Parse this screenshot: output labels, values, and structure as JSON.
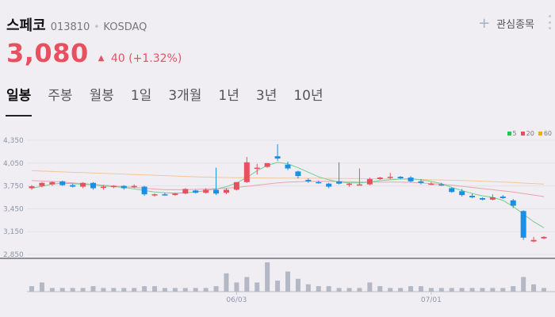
{
  "stock": {
    "name": "스페코",
    "code": "013810",
    "separator": "•",
    "market": "KOSDAQ",
    "price": "3,080",
    "change_arrow": "▲",
    "change_amount": "40",
    "change_percent": "(+1.32%)"
  },
  "watchlist": {
    "icon": "plus-icon",
    "label": "관심종목"
  },
  "tabs": [
    {
      "label": "일봉",
      "active": true
    },
    {
      "label": "주봉",
      "active": false
    },
    {
      "label": "월봉",
      "active": false
    },
    {
      "label": "1일",
      "active": false
    },
    {
      "label": "3개월",
      "active": false
    },
    {
      "label": "1년",
      "active": false
    },
    {
      "label": "3년",
      "active": false
    },
    {
      "label": "10년",
      "active": false
    }
  ],
  "legend": [
    {
      "label": "5",
      "color": "#2fbf4f"
    },
    {
      "label": "20",
      "color": "#e9505f"
    },
    {
      "label": "60",
      "color": "#f5a623"
    }
  ],
  "colors": {
    "up": "#e9505f",
    "down": "#1a8fe3",
    "volume": "#b3b8c4",
    "ma20": "#e9a2ad",
    "ma60": "#f0c79a",
    "ma5": "#6fcf8f"
  },
  "chart_data": {
    "type": "candlestick",
    "y_ticks": [
      "4,350",
      "4,050",
      "3,750",
      "3,450",
      "3,150",
      "2,850"
    ],
    "ylim": [
      2850,
      4350
    ],
    "x_ticks": [
      {
        "label": "06/03",
        "index": 20
      },
      {
        "label": "07/01",
        "index": 39
      }
    ],
    "candles": [
      {
        "o": 3720,
        "h": 3760,
        "l": 3700,
        "c": 3745
      },
      {
        "o": 3750,
        "h": 3800,
        "l": 3730,
        "c": 3790
      },
      {
        "o": 3770,
        "h": 3810,
        "l": 3750,
        "c": 3800
      },
      {
        "o": 3810,
        "h": 3820,
        "l": 3750,
        "c": 3760
      },
      {
        "o": 3760,
        "h": 3780,
        "l": 3730,
        "c": 3740
      },
      {
        "o": 3740,
        "h": 3800,
        "l": 3720,
        "c": 3790
      },
      {
        "o": 3790,
        "h": 3800,
        "l": 3700,
        "c": 3720
      },
      {
        "o": 3730,
        "h": 3760,
        "l": 3700,
        "c": 3740
      },
      {
        "o": 3740,
        "h": 3760,
        "l": 3720,
        "c": 3750
      },
      {
        "o": 3750,
        "h": 3760,
        "l": 3700,
        "c": 3720
      },
      {
        "o": 3740,
        "h": 3770,
        "l": 3720,
        "c": 3750
      },
      {
        "o": 3740,
        "h": 3750,
        "l": 3620,
        "c": 3640
      },
      {
        "o": 3630,
        "h": 3650,
        "l": 3610,
        "c": 3640
      },
      {
        "o": 3640,
        "h": 3660,
        "l": 3620,
        "c": 3630
      },
      {
        "o": 3630,
        "h": 3660,
        "l": 3620,
        "c": 3650
      },
      {
        "o": 3650,
        "h": 3720,
        "l": 3640,
        "c": 3710
      },
      {
        "o": 3690,
        "h": 3700,
        "l": 3650,
        "c": 3660
      },
      {
        "o": 3660,
        "h": 3720,
        "l": 3650,
        "c": 3700
      },
      {
        "o": 3700,
        "h": 3990,
        "l": 3630,
        "c": 3650
      },
      {
        "o": 3660,
        "h": 3720,
        "l": 3640,
        "c": 3700
      },
      {
        "o": 3700,
        "h": 3800,
        "l": 3690,
        "c": 3800
      },
      {
        "o": 3800,
        "h": 4130,
        "l": 3790,
        "c": 4060
      },
      {
        "o": 3990,
        "h": 4040,
        "l": 3900,
        "c": 3990
      },
      {
        "o": 4000,
        "h": 4050,
        "l": 3990,
        "c": 4050
      },
      {
        "o": 4140,
        "h": 4300,
        "l": 4080,
        "c": 4110
      },
      {
        "o": 4030,
        "h": 4070,
        "l": 3960,
        "c": 3980
      },
      {
        "o": 3940,
        "h": 3950,
        "l": 3850,
        "c": 3880
      },
      {
        "o": 3830,
        "h": 3850,
        "l": 3790,
        "c": 3810
      },
      {
        "o": 3800,
        "h": 3820,
        "l": 3780,
        "c": 3790
      },
      {
        "o": 3780,
        "h": 3790,
        "l": 3720,
        "c": 3740
      },
      {
        "o": 3810,
        "h": 4060,
        "l": 3770,
        "c": 3780
      },
      {
        "o": 3770,
        "h": 3790,
        "l": 3740,
        "c": 3780
      },
      {
        "o": 3770,
        "h": 3980,
        "l": 3760,
        "c": 3770
      },
      {
        "o": 3770,
        "h": 3860,
        "l": 3760,
        "c": 3840
      },
      {
        "o": 3840,
        "h": 3870,
        "l": 3830,
        "c": 3860
      },
      {
        "o": 3860,
        "h": 3920,
        "l": 3840,
        "c": 3870
      },
      {
        "o": 3870,
        "h": 3880,
        "l": 3840,
        "c": 3850
      },
      {
        "o": 3860,
        "h": 3880,
        "l": 3800,
        "c": 3810
      },
      {
        "o": 3810,
        "h": 3840,
        "l": 3770,
        "c": 3790
      },
      {
        "o": 3780,
        "h": 3800,
        "l": 3760,
        "c": 3780
      },
      {
        "o": 3770,
        "h": 3790,
        "l": 3750,
        "c": 3760
      },
      {
        "o": 3720,
        "h": 3730,
        "l": 3660,
        "c": 3670
      },
      {
        "o": 3680,
        "h": 3710,
        "l": 3610,
        "c": 3630
      },
      {
        "o": 3620,
        "h": 3650,
        "l": 3590,
        "c": 3600
      },
      {
        "o": 3590,
        "h": 3600,
        "l": 3560,
        "c": 3570
      },
      {
        "o": 3570,
        "h": 3640,
        "l": 3560,
        "c": 3600
      },
      {
        "o": 3610,
        "h": 3630,
        "l": 3580,
        "c": 3590
      },
      {
        "o": 3560,
        "h": 3580,
        "l": 3460,
        "c": 3490
      },
      {
        "o": 3420,
        "h": 3430,
        "l": 3040,
        "c": 3070
      },
      {
        "o": 3020,
        "h": 3080,
        "l": 3010,
        "c": 3040
      },
      {
        "o": 3060,
        "h": 3090,
        "l": 3050,
        "c": 3080
      }
    ],
    "ma5": [
      3720,
      3745,
      3775,
      3785,
      3780,
      3770,
      3765,
      3750,
      3740,
      3730,
      3710,
      3690,
      3670,
      3660,
      3655,
      3660,
      3670,
      3690,
      3710,
      3740,
      3790,
      3860,
      3950,
      4020,
      4060,
      4040,
      3990,
      3930,
      3870,
      3830,
      3800,
      3790,
      3790,
      3800,
      3820,
      3830,
      3840,
      3845,
      3830,
      3810,
      3780,
      3730,
      3690,
      3650,
      3620,
      3600,
      3560,
      3480,
      3380,
      3280,
      3200
    ],
    "ma20": [
      3820,
      3815,
      3810,
      3800,
      3790,
      3780,
      3770,
      3760,
      3750,
      3740,
      3730,
      3720,
      3710,
      3700,
      3700,
      3700,
      3705,
      3710,
      3715,
      3720,
      3730,
      3745,
      3760,
      3775,
      3790,
      3800,
      3805,
      3810,
      3810,
      3810,
      3808,
      3805,
      3800,
      3800,
      3800,
      3800,
      3800,
      3795,
      3790,
      3780,
      3770,
      3760,
      3745,
      3730,
      3715,
      3700,
      3685,
      3670,
      3650,
      3630,
      3610
    ],
    "ma60": [
      3950,
      3945,
      3940,
      3935,
      3930,
      3925,
      3920,
      3915,
      3910,
      3905,
      3900,
      3895,
      3890,
      3885,
      3880,
      3875,
      3870,
      3865,
      3862,
      3860,
      3858,
      3856,
      3855,
      3854,
      3853,
      3852,
      3852,
      3851,
      3850,
      3849,
      3848,
      3847,
      3846,
      3845,
      3843,
      3841,
      3839,
      3837,
      3834,
      3831,
      3828,
      3825,
      3821,
      3817,
      3812,
      3807,
      3801,
      3795,
      3788,
      3781,
      3773
    ],
    "volume": [
      3,
      5,
      2,
      2,
      2,
      2,
      3,
      2,
      2,
      2,
      2,
      3,
      3,
      2,
      2,
      2,
      2,
      2,
      3,
      10,
      5,
      8,
      5,
      16,
      6,
      11,
      7,
      4,
      3,
      3,
      2,
      2,
      2,
      5,
      3,
      2,
      2,
      3,
      3,
      2,
      2,
      2,
      2,
      2,
      2,
      2,
      2,
      3,
      8,
      4,
      2
    ]
  }
}
